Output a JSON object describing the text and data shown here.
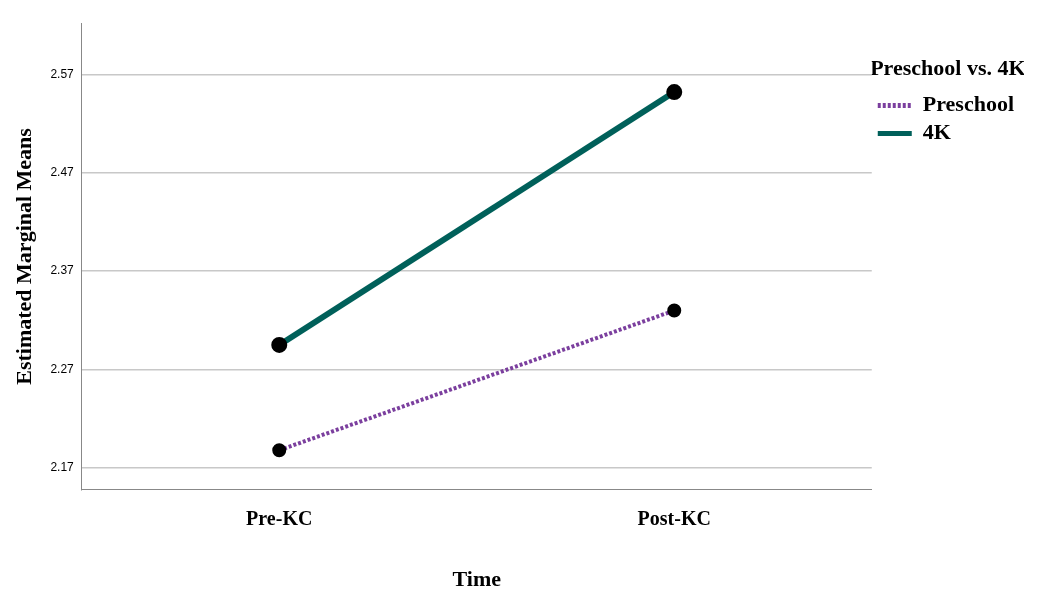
{
  "chart_data": {
    "type": "line",
    "xlabel": "Time",
    "ylabel": "Estimated Marginal Means",
    "legend_title": "Preschool vs. 4K",
    "categories": [
      "Pre-KC",
      "Post-KC"
    ],
    "series": [
      {
        "name": "Preschool",
        "color": "#7b3f9e",
        "values": [
          2.188,
          2.33
        ],
        "line_style": "dotted"
      },
      {
        "name": "4K",
        "color": "#00605a",
        "values": [
          2.295,
          2.552
        ],
        "line_style": "solid"
      }
    ],
    "ylim": [
      2.148,
      2.622
    ],
    "yticks": [
      2.17,
      2.27,
      2.37,
      2.47,
      2.57
    ],
    "grid": "y",
    "legend": "right",
    "marker": "circle"
  }
}
